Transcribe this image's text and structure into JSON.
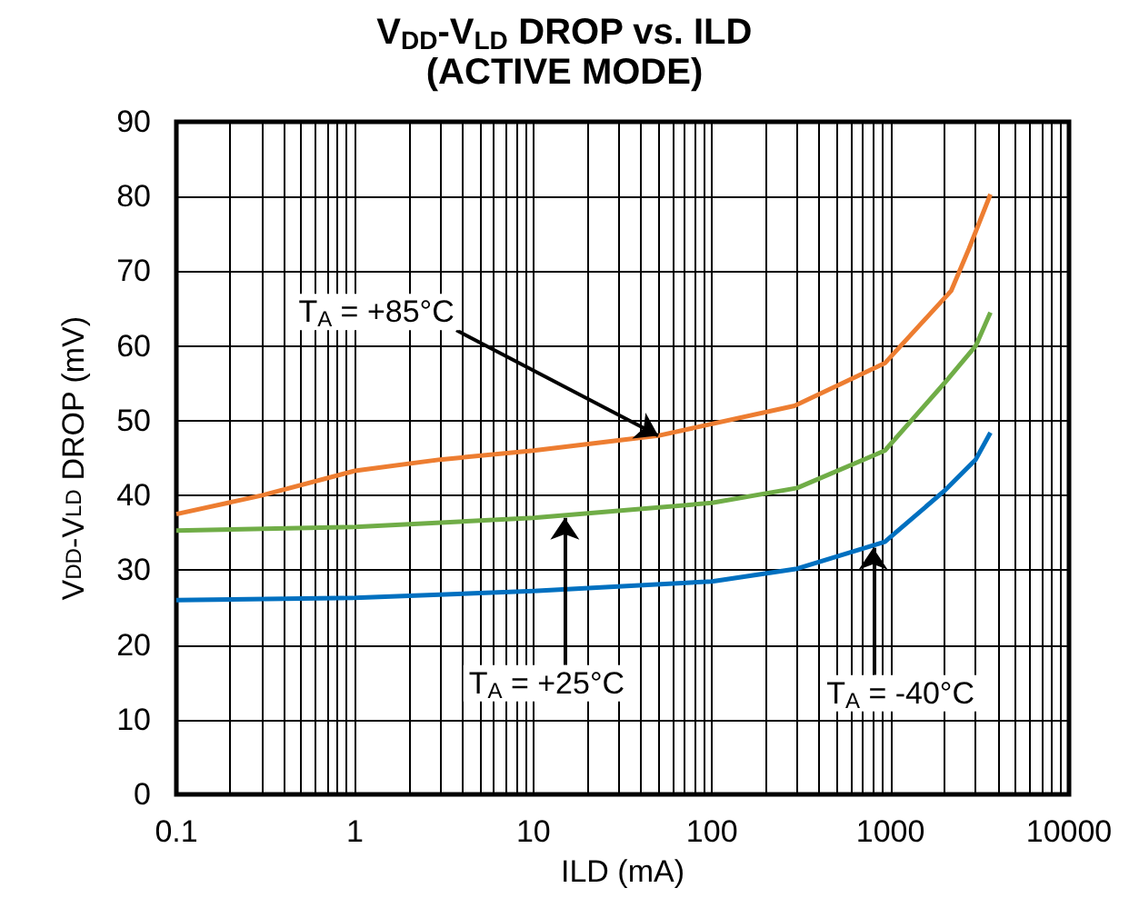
{
  "chart_data": {
    "type": "line",
    "title": "V$_{DD}$-V$_{LD}$ DROP vs. ILD\n(ACTIVE MODE)",
    "xlabel": "ILD (mA)",
    "ylabel": "V$_{DD}$-V$_{LD}$ DROP (mV)",
    "log": "x",
    "xlim": [
      0.1,
      10000
    ],
    "xticks": [
      0.1,
      1,
      10,
      100,
      1000,
      10000
    ],
    "ylim": [
      0,
      90
    ],
    "yticks": [
      0,
      10,
      20,
      30,
      40,
      50,
      60,
      70,
      80,
      90
    ],
    "grid": true,
    "marker": "none",
    "line_style": "solid",
    "series": [
      {
        "color": "#ed7d31",
        "x": [
          0.1,
          0.3,
          1,
          3,
          10,
          50,
          290,
          930,
          2190,
          2750,
          3630
        ],
        "values": [
          37.5,
          40,
          43.3,
          44.8,
          46,
          48,
          52,
          57.7,
          67.4,
          73,
          80.3
        ]
      },
      {
        "color": "#70ad47",
        "x": [
          0.1,
          1,
          10,
          100,
          300,
          930,
          2000,
          3000,
          3630
        ],
        "values": [
          35.3,
          35.8,
          37,
          39,
          41,
          46,
          55,
          60,
          64.5
        ]
      },
      {
        "color": "#0070c0",
        "x": [
          0.1,
          1,
          10,
          100,
          300,
          930,
          2000,
          3000,
          3630
        ],
        "values": [
          26,
          26.3,
          27.2,
          28.5,
          30.2,
          33.8,
          40.6,
          44.8,
          48.4
        ]
      }
    ],
    "annotations": [
      {
        "text": "T$_{A}$ = +85°C",
        "x": 50,
        "y": 48
      },
      {
        "text": "T$_{A}$ = +25°C",
        "x": 15,
        "y": 37
      },
      {
        "text": "T$_{A}$ = -40°C",
        "x": 800,
        "y": 33
      }
    ]
  }
}
